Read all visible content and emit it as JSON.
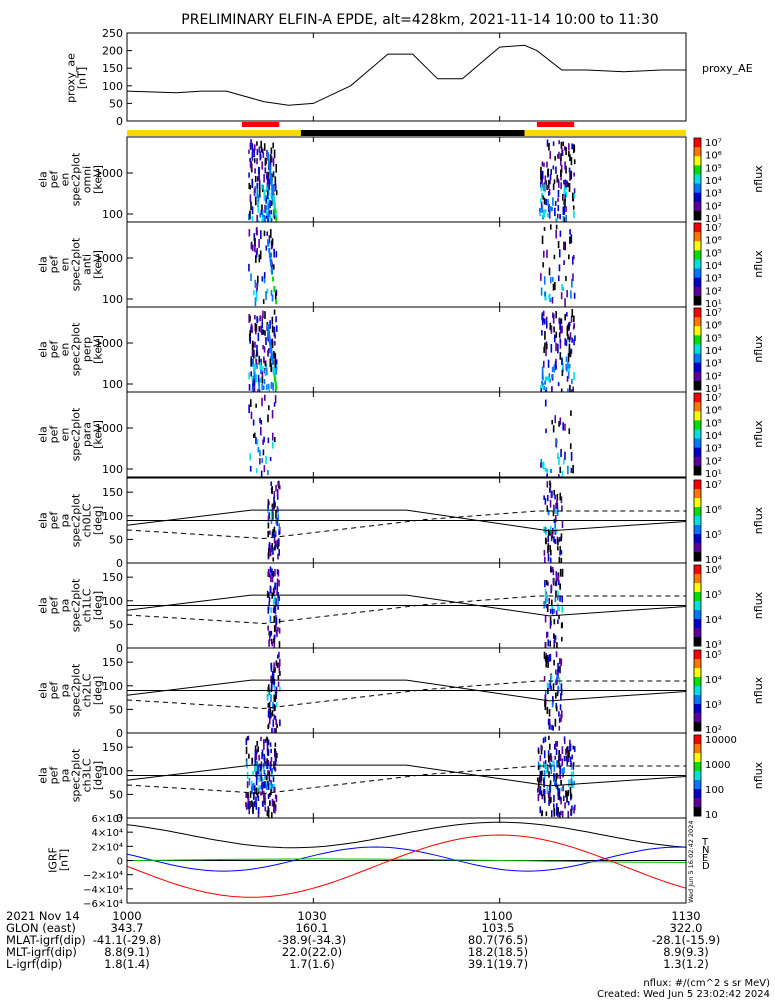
{
  "title": "PRELIMINARY ELFIN-A EPDE, alt=428km, 2021-11-14 10:00 to 11:30",
  "colors": {
    "ae_line": "#000000",
    "day_bar": "#ffd700",
    "night_bar": "#000000",
    "science_bar": "#ff0000",
    "grf_T": "#000000",
    "grf_N": "#0000ff",
    "grf_E": "#00c000",
    "grf_D": "#ff0000"
  },
  "time_axis": {
    "labels": [
      "1000",
      "1030",
      "1100",
      "1130"
    ]
  },
  "footer_rows": [
    {
      "label": "2021 Nov 14",
      "values": [
        "1000",
        "1030",
        "1100",
        "1130"
      ]
    },
    {
      "label": "GLON (east)",
      "values": [
        "343.7",
        "160.1",
        "103.5",
        "322.0"
      ]
    },
    {
      "label": "MLAT-igrf(dip)",
      "values": [
        "-41.1(-29.8)",
        "-38.9(-34.3)",
        "80.7(76.5)",
        "-28.1(-15.9)"
      ]
    },
    {
      "label": "MLT-igrf(dip)",
      "values": [
        "8.8(9.1)",
        "22.0(22.0)",
        "18.2(18.5)",
        "8.9(9.3)"
      ]
    },
    {
      "label": "L-igrf(dip)",
      "values": [
        "1.8(1.4)",
        "1.7(1.6)",
        "39.1(19.7)",
        "1.3(1.2)"
      ]
    }
  ],
  "credits": {
    "units": "nflux: #/(cm^2 s sr MeV)",
    "created": "Created: Wed Jun  5 23:02:42 2024",
    "stamp": "Wed Jun  5 16:02:42 2024"
  },
  "chart_data": [
    {
      "type": "line",
      "name": "ae",
      "ylabel_lines": [
        "proxy_ae",
        "[nT]"
      ],
      "legend": "proxy_AE",
      "yticks": [
        "250",
        "200",
        "150",
        "100",
        "50",
        "0"
      ],
      "ylim": [
        0,
        250
      ],
      "x_minutes": [
        0,
        8,
        12,
        16,
        22,
        26,
        30,
        36,
        42,
        46,
        50,
        54,
        58,
        60,
        64,
        66,
        70,
        74,
        80,
        86,
        90
      ],
      "values": [
        85,
        80,
        85,
        85,
        55,
        45,
        50,
        100,
        190,
        190,
        120,
        120,
        180,
        210,
        215,
        200,
        145,
        145,
        140,
        145,
        145
      ]
    },
    {
      "type": "heatmap",
      "name": "omni",
      "ylabel_lines": [
        "ela",
        "pef",
        "en",
        "spec2plot",
        "omni",
        "[keV]"
      ],
      "yticks": [
        "1000",
        "100"
      ],
      "zlabel": "nflux",
      "zticks": [
        "10^7",
        "10^6",
        "10^5",
        "10^4",
        "10^3",
        "10^2",
        "10^1"
      ]
    },
    {
      "type": "heatmap",
      "name": "anti",
      "ylabel_lines": [
        "ela",
        "pef",
        "en",
        "spec2plot",
        "anti",
        "[keV]"
      ],
      "yticks": [
        "1000",
        "100"
      ],
      "zlabel": "nflux",
      "zticks": [
        "10^7",
        "10^6",
        "10^5",
        "10^4",
        "10^3",
        "10^2",
        "10^1"
      ]
    },
    {
      "type": "heatmap",
      "name": "perp",
      "ylabel_lines": [
        "ela",
        "pef",
        "en",
        "spec2plot",
        "perp",
        "[keV]"
      ],
      "yticks": [
        "1000",
        "100"
      ],
      "zlabel": "nflux",
      "zticks": [
        "10^7",
        "10^6",
        "10^5",
        "10^4",
        "10^3",
        "10^2",
        "10^1"
      ]
    },
    {
      "type": "heatmap",
      "name": "para",
      "ylabel_lines": [
        "ela",
        "pef",
        "en",
        "spec2plot",
        "para",
        "[keV]"
      ],
      "yticks": [
        "1000",
        "100"
      ],
      "zlabel": "nflux",
      "zticks": [
        "10^7",
        "10^6",
        "10^5",
        "10^4",
        "10^3",
        "10^2",
        "10^1"
      ]
    },
    {
      "type": "heatmap",
      "name": "ch0",
      "ylabel_lines": [
        "ela",
        "pef",
        "pa",
        "spec2plot",
        "ch0LC",
        "[deg]"
      ],
      "yticks": [
        "150",
        "100",
        "50",
        "0"
      ],
      "zlabel": "nflux",
      "zticks": [
        "10^7",
        "10^6",
        "10^5",
        "10^4"
      ]
    },
    {
      "type": "heatmap",
      "name": "ch1",
      "ylabel_lines": [
        "ela",
        "pef",
        "pa",
        "spec2plot",
        "ch1LC",
        "[deg]"
      ],
      "yticks": [
        "150",
        "100",
        "50",
        "0"
      ],
      "zlabel": "nflux",
      "zticks": [
        "10^6",
        "10^5",
        "10^4",
        "10^3"
      ]
    },
    {
      "type": "heatmap",
      "name": "ch2",
      "ylabel_lines": [
        "ela",
        "pef",
        "pa",
        "spec2plot",
        "ch2LC",
        "[deg]"
      ],
      "yticks": [
        "150",
        "100",
        "50",
        "0"
      ],
      "zlabel": "nflux",
      "zticks": [
        "10^5",
        "10^4",
        "10^3",
        "10^2"
      ]
    },
    {
      "type": "heatmap",
      "name": "ch3",
      "ylabel_lines": [
        "ela",
        "pef",
        "pa",
        "spec2plot",
        "ch3LC",
        "[deg]"
      ],
      "yticks": [
        "150",
        "100",
        "50",
        "0"
      ],
      "zlabel": "nflux",
      "zticks": [
        "10000",
        "1000",
        "100",
        "10"
      ]
    },
    {
      "type": "line",
      "name": "igrf",
      "ylabel_lines": [
        "IGRF",
        "[nT]"
      ],
      "yticks": [
        "6×10^4",
        "4×10^4",
        "2×10^4",
        "0",
        "−2×10^4",
        "−4×10^4",
        "−6×10^4"
      ],
      "ylim": [
        -60000,
        60000
      ],
      "legend": [
        "T",
        "N",
        "E",
        "D"
      ]
    }
  ]
}
